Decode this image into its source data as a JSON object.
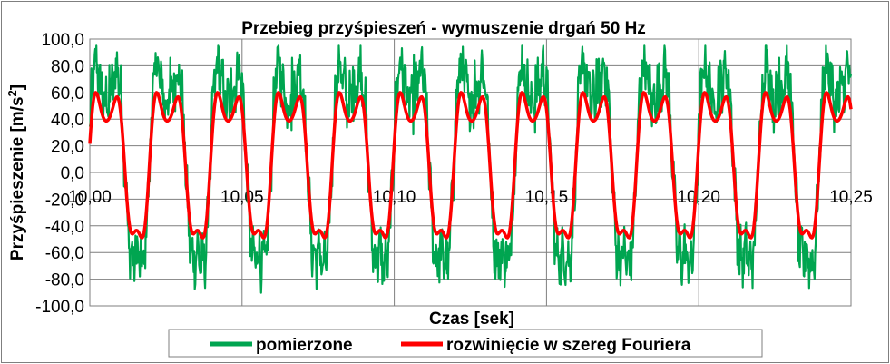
{
  "chart_data": {
    "type": "line",
    "title": "Przebieg przyśpieszeń - wymuszenie drgań 50 Hz",
    "xlabel": "Czas [sek]",
    "ylabel_main": "Przyśpieszenie [m/s",
    "ylabel_sup": "2",
    "ylabel_end": "]",
    "xlim": [
      10.0,
      10.25
    ],
    "ylim": [
      -100,
      100
    ],
    "x_ticks": [
      10.0,
      10.05,
      10.1,
      10.15,
      10.2,
      10.25
    ],
    "x_tick_labels": [
      "10,00",
      "10,05",
      "10,10",
      "10,15",
      "10,20",
      "10,25"
    ],
    "y_ticks": [
      100,
      80,
      60,
      40,
      20,
      0,
      -20,
      -40,
      -60,
      -80,
      -100
    ],
    "y_tick_labels": [
      "100,0",
      "80,0",
      "60,0",
      "40,0",
      "20,0",
      "0,0",
      "-20,0",
      "-40,0",
      "-60,0",
      "-80,0",
      "-100,0"
    ],
    "grid": true,
    "legend_position": "bottom",
    "series": [
      {
        "name": "pomierzone",
        "color": "#00a550",
        "note": "measured acceleration, ~50 Hz, peaks ~80-88, troughs ~-70 to -80 with high-frequency noise",
        "peak_times": [
          10.0065,
          10.0265,
          10.0465,
          10.0665,
          10.0865,
          10.1065,
          10.1265,
          10.1465,
          10.1665,
          10.1865,
          10.2065,
          10.2265,
          10.2465
        ],
        "peak_values": [
          80,
          86,
          78,
          86,
          79,
          88,
          84,
          80,
          85,
          80,
          79,
          86,
          79
        ],
        "trough_times": [
          10.0165,
          10.0365,
          10.0565,
          10.0765,
          10.0965,
          10.1165,
          10.1365,
          10.1565,
          10.1765,
          10.1965,
          10.2165,
          10.2365
        ],
        "trough_values": [
          -78,
          -63,
          -79,
          -70,
          -78,
          -72,
          -75,
          -71,
          -70,
          -68,
          -77,
          -72
        ]
      },
      {
        "name": "rozwinięcie w szereg Fouriera",
        "color": "#ff0000",
        "note": "Fourier series fit, period 0.02 s, max ~60, min ~-49",
        "period": 0.02,
        "max_value": 60,
        "min_value": -49
      }
    ]
  }
}
